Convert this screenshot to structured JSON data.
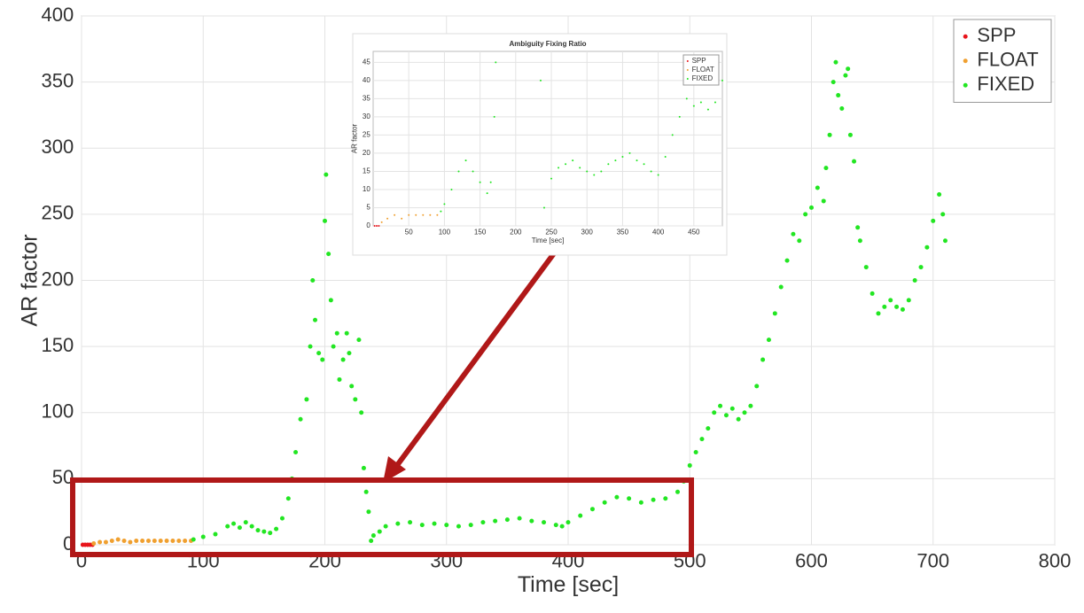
{
  "chart_data": [
    {
      "type": "scatter",
      "xlabel": "Time [sec]",
      "ylabel": "AR factor",
      "xlim": [
        0,
        800
      ],
      "ylim": [
        0,
        400
      ],
      "xticks": [
        0,
        100,
        200,
        300,
        400,
        500,
        600,
        700,
        800
      ],
      "yticks": [
        0,
        50,
        100,
        150,
        200,
        250,
        300,
        350,
        400
      ],
      "grid": true,
      "legend": "upper right",
      "series": [
        {
          "name": "SPP",
          "color": "#e8141b",
          "x": [
            1,
            3,
            5,
            7,
            9
          ],
          "values": [
            0,
            0,
            0,
            0,
            0
          ]
        },
        {
          "name": "FLOAT",
          "color": "#f0a030",
          "x": [
            10,
            15,
            20,
            25,
            30,
            35,
            40,
            45,
            50,
            55,
            60,
            65,
            70,
            75,
            80,
            85,
            90
          ],
          "values": [
            1,
            2,
            2,
            3,
            4,
            3,
            2,
            3,
            3,
            3,
            3,
            3,
            3,
            3,
            3,
            3,
            3
          ]
        },
        {
          "name": "FIXED",
          "color": "#22e622",
          "x": [
            92,
            100,
            110,
            120,
            125,
            130,
            135,
            140,
            145,
            150,
            155,
            160,
            165,
            170,
            173,
            176,
            180,
            185,
            188,
            190,
            192,
            195,
            198,
            200,
            201,
            203,
            205,
            207,
            210,
            212,
            215,
            218,
            220,
            222,
            225,
            228,
            230,
            232,
            234,
            236,
            238,
            240,
            245,
            250,
            260,
            270,
            280,
            290,
            300,
            310,
            320,
            330,
            340,
            350,
            360,
            370,
            380,
            390,
            395,
            400,
            410,
            420,
            430,
            440,
            450,
            460,
            470,
            480,
            490,
            495,
            500,
            505,
            510,
            515,
            520,
            525,
            530,
            535,
            540,
            545,
            550,
            555,
            560,
            565,
            570,
            575,
            580,
            585,
            590,
            595,
            600,
            605,
            610,
            612,
            615,
            618,
            620,
            622,
            625,
            628,
            630,
            632,
            635,
            638,
            640,
            645,
            650,
            655,
            660,
            665,
            670,
            675,
            680,
            685,
            690,
            695,
            700,
            705,
            708,
            710
          ],
          "values": [
            4,
            6,
            8,
            14,
            16,
            13,
            17,
            14,
            11,
            10,
            9,
            12,
            20,
            35,
            50,
            70,
            95,
            110,
            150,
            200,
            170,
            145,
            140,
            245,
            280,
            220,
            185,
            150,
            160,
            125,
            140,
            160,
            145,
            120,
            110,
            155,
            100,
            58,
            40,
            25,
            3,
            7,
            10,
            14,
            16,
            17,
            15,
            16,
            15,
            14,
            15,
            17,
            18,
            19,
            20,
            18,
            17,
            15,
            14,
            17,
            22,
            27,
            32,
            36,
            35,
            32,
            34,
            35,
            40,
            48,
            60,
            70,
            80,
            88,
            100,
            105,
            98,
            103,
            95,
            100,
            105,
            120,
            140,
            155,
            175,
            195,
            215,
            235,
            230,
            250,
            255,
            270,
            260,
            285,
            310,
            350,
            365,
            340,
            330,
            355,
            360,
            310,
            290,
            240,
            230,
            210,
            190,
            175,
            180,
            185,
            180,
            178,
            185,
            200,
            210,
            225,
            245,
            265,
            250,
            230
          ]
        }
      ]
    },
    {
      "type": "scatter",
      "title": "Ambiguity Fixing Ratio",
      "xlabel": "Time [sec]",
      "ylabel": "AR factor",
      "xlim": [
        0,
        490
      ],
      "ylim": [
        0,
        48
      ],
      "xticks": [
        50,
        100,
        150,
        200,
        250,
        300,
        350,
        400,
        450
      ],
      "yticks": [
        0,
        5,
        10,
        15,
        20,
        25,
        30,
        35,
        40,
        45
      ],
      "grid": true,
      "legend": "upper right",
      "series": [
        {
          "name": "SPP",
          "color": "#e8141b",
          "x": [
            2,
            5,
            8
          ],
          "values": [
            0,
            0,
            0
          ]
        },
        {
          "name": "FLOAT",
          "color": "#f0a030",
          "x": [
            12,
            20,
            30,
            40,
            50,
            60,
            70,
            80,
            90
          ],
          "values": [
            1,
            2,
            3,
            2,
            3,
            3,
            3,
            3,
            3
          ]
        },
        {
          "name": "FIXED",
          "color": "#22e622",
          "x": [
            95,
            100,
            110,
            120,
            130,
            140,
            150,
            160,
            165,
            170,
            172,
            235,
            240,
            250,
            260,
            270,
            280,
            290,
            300,
            310,
            320,
            330,
            340,
            350,
            360,
            370,
            380,
            390,
            400,
            410,
            420,
            430,
            440,
            450,
            460,
            470,
            480,
            490
          ],
          "values": [
            4,
            6,
            10,
            15,
            18,
            15,
            12,
            9,
            12,
            30,
            45,
            40,
            5,
            13,
            16,
            17,
            18,
            16,
            15,
            14,
            15,
            17,
            18,
            19,
            20,
            18,
            17,
            15,
            14,
            19,
            25,
            30,
            35,
            33,
            34,
            32,
            34,
            40
          ]
        }
      ]
    }
  ]
}
